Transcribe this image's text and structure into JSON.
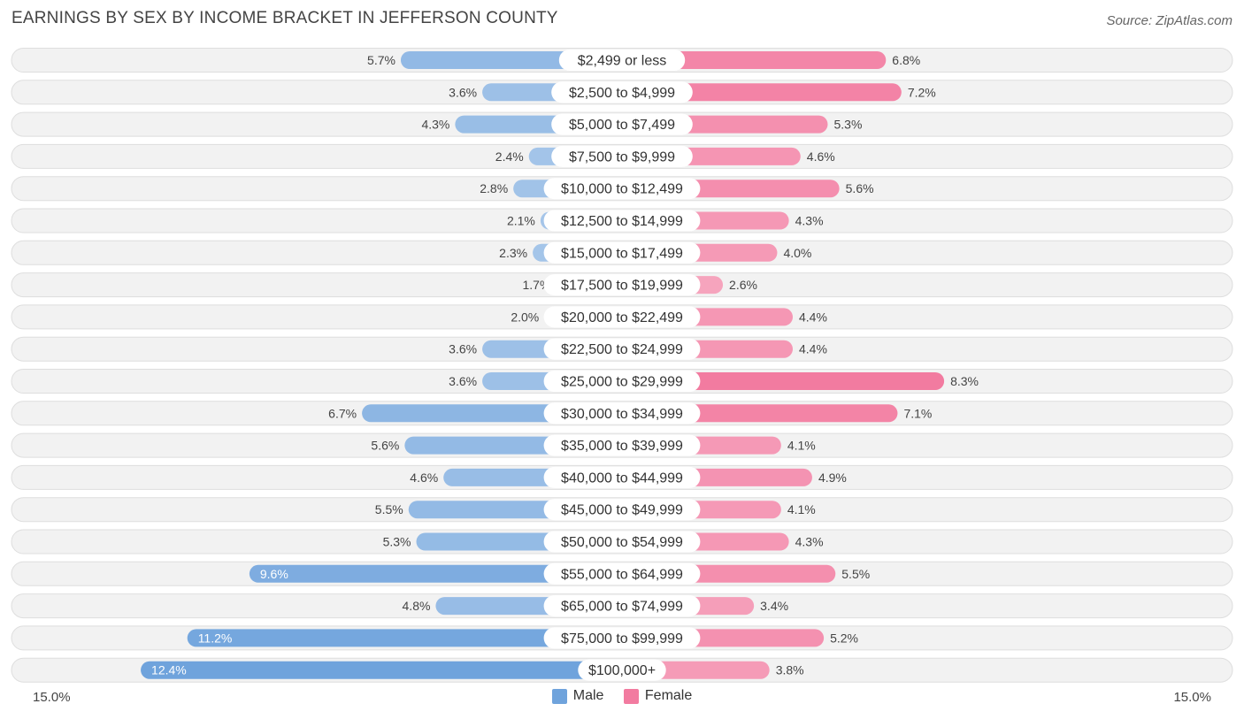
{
  "chart_data": {
    "type": "bar",
    "orientation": "horizontal-diverging",
    "title": "EARNINGS BY SEX BY INCOME BRACKET IN JEFFERSON COUNTY",
    "source": "Source: ZipAtlas.com",
    "categories": [
      "$2,499 or less",
      "$2,500 to $4,999",
      "$5,000 to $7,499",
      "$7,500 to $9,999",
      "$10,000 to $12,499",
      "$12,500 to $14,999",
      "$15,000 to $17,499",
      "$17,500 to $19,999",
      "$20,000 to $22,499",
      "$22,500 to $24,999",
      "$25,000 to $29,999",
      "$30,000 to $34,999",
      "$35,000 to $39,999",
      "$40,000 to $44,999",
      "$45,000 to $49,999",
      "$50,000 to $54,999",
      "$55,000 to $64,999",
      "$65,000 to $74,999",
      "$75,000 to $99,999",
      "$100,000+"
    ],
    "series": [
      {
        "name": "Male",
        "color": "#6fa3dc",
        "values": [
          5.7,
          3.6,
          4.3,
          2.4,
          2.8,
          2.1,
          2.3,
          1.7,
          2.0,
          3.6,
          3.6,
          6.7,
          5.6,
          4.6,
          5.5,
          5.3,
          9.6,
          4.8,
          11.2,
          12.4
        ],
        "labels": [
          "5.7%",
          "3.6%",
          "4.3%",
          "2.4%",
          "2.8%",
          "2.1%",
          "2.3%",
          "1.7%",
          "2.0%",
          "3.6%",
          "3.6%",
          "6.7%",
          "5.6%",
          "4.6%",
          "5.5%",
          "5.3%",
          "9.6%",
          "4.8%",
          "11.2%",
          "12.4%"
        ]
      },
      {
        "name": "Female",
        "color": "#f27ba0",
        "values": [
          6.8,
          7.2,
          5.3,
          4.6,
          5.6,
          4.3,
          4.0,
          2.6,
          4.4,
          4.4,
          8.3,
          7.1,
          4.1,
          4.9,
          4.1,
          4.3,
          5.5,
          3.4,
          5.2,
          3.8
        ],
        "labels": [
          "6.8%",
          "7.2%",
          "5.3%",
          "4.6%",
          "5.6%",
          "4.3%",
          "4.0%",
          "2.6%",
          "4.4%",
          "4.4%",
          "8.3%",
          "7.1%",
          "4.1%",
          "4.9%",
          "4.1%",
          "4.3%",
          "5.5%",
          "3.4%",
          "5.2%",
          "3.8%"
        ]
      }
    ],
    "xlim": [
      -15.0,
      15.0
    ],
    "axis_min_label": "15.0%",
    "axis_max_label": "15.0%",
    "legend_position": "bottom-center"
  }
}
